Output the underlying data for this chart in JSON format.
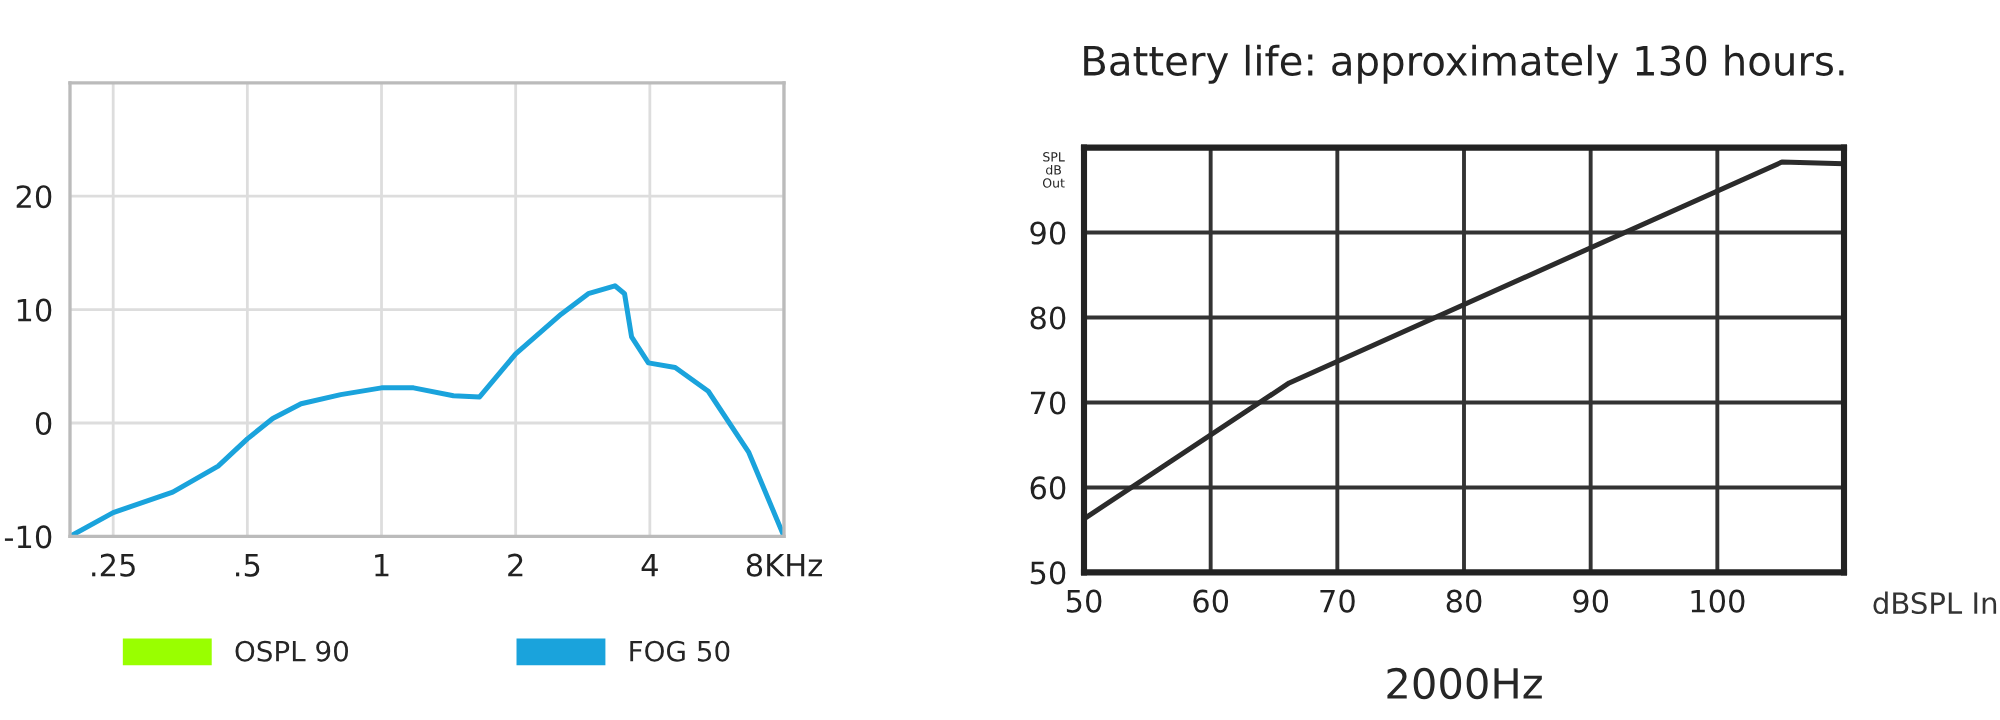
{
  "chart_data": [
    {
      "type": "line",
      "log": "x",
      "xlim": [
        0.2,
        8
      ],
      "ylim": [
        -10,
        30
      ],
      "xticks": [
        {
          "value": 0.25,
          "label": ".25"
        },
        {
          "value": 0.5,
          "label": ".5"
        },
        1,
        2,
        4,
        {
          "value": 8,
          "label": "8KHz"
        }
      ],
      "yticks": [
        -10,
        0,
        10,
        20
      ],
      "grid": true,
      "legend": "bottom",
      "series": [
        {
          "name": "OSPL 90",
          "color": "#99ff00"
        },
        {
          "name": "FOG 50",
          "color": "#1aa3dc",
          "x": [
            0.2,
            0.25,
            0.34,
            0.43,
            0.5,
            0.57,
            0.66,
            0.81,
            1,
            1.18,
            1.45,
            1.66,
            2,
            2.53,
            2.91,
            3.34,
            3.51,
            3.64,
            3.97,
            4.56,
            5.41,
            6.67,
            8
          ],
          "values": [
            -10,
            -7.9,
            -6.1,
            -3.8,
            -1.4,
            0.4,
            1.7,
            2.5,
            3.1,
            3.1,
            2.4,
            2.3,
            6.1,
            9.6,
            11.4,
            12.1,
            11.4,
            7.6,
            5.3,
            4.9,
            2.8,
            -2.6,
            -10
          ]
        }
      ]
    },
    {
      "type": "line",
      "title": "Battery life: approximately 130 hours.",
      "xlabel": "dBSPL In",
      "ylabel": "SPL\ndB\nOut",
      "annotations": [
        "2000Hz"
      ],
      "xlim": [
        50,
        110
      ],
      "ylim": [
        50,
        100
      ],
      "xticks": [
        50,
        60,
        70,
        80,
        90,
        100
      ],
      "yticks": [
        50,
        60,
        70,
        80,
        90
      ],
      "grid": true,
      "series": [
        {
          "color": "#2b2b2b",
          "x": [
            50,
            66.2,
            105.1,
            110
          ],
          "values": [
            56.3,
            72.3,
            98.3,
            98.1
          ]
        }
      ]
    }
  ]
}
